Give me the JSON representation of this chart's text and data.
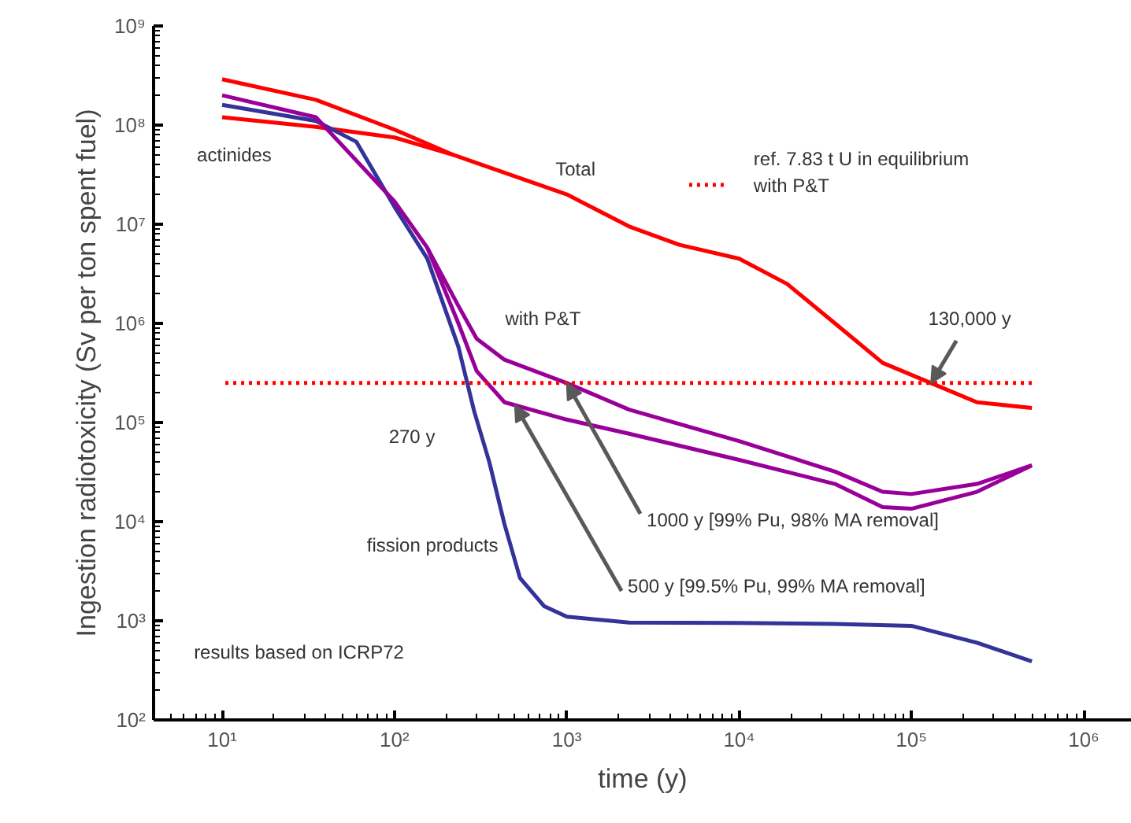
{
  "chart_data": {
    "type": "line",
    "xlabel": "time (y)",
    "ylabel": "Ingestion radiotoxicity (Sv per ton spent fuel)",
    "log": "xy",
    "grid": false,
    "line_style": "solid",
    "marker": "none",
    "legend": "top right",
    "xlim": [
      4,
      1900000
    ],
    "ylim": [
      100,
      1000000000
    ],
    "xticks": [
      {
        "value": 10,
        "label": "10¹"
      },
      {
        "value": 100,
        "label": "10²"
      },
      {
        "value": 1000,
        "label": "10³"
      },
      {
        "value": 10000,
        "label": "10⁴"
      },
      {
        "value": 100000,
        "label": "10⁵"
      },
      {
        "value": 1000000,
        "label": "10⁶"
      }
    ],
    "yticks": [
      {
        "value": 100,
        "label": "10²"
      },
      {
        "value": 1000,
        "label": "10³"
      },
      {
        "value": 10000,
        "label": "10⁴"
      },
      {
        "value": 100000,
        "label": "10⁵"
      },
      {
        "value": 1000000,
        "label": "10⁶"
      },
      {
        "value": 10000000,
        "label": "10⁷"
      },
      {
        "value": 100000000,
        "label": "10⁸"
      },
      {
        "value": 1000000000,
        "label": "10⁹"
      }
    ],
    "series": [
      {
        "name": "Total",
        "color": "#ff0000",
        "x": [
          10,
          35,
          100,
          220,
          1000,
          2300,
          4500,
          10000,
          19000,
          36000,
          68000,
          130000,
          240000,
          500000
        ],
        "values": [
          290000000,
          180000000,
          90000000,
          50000000,
          20000000,
          9500000,
          6200000,
          4500000,
          2500000,
          1000000,
          400000,
          250000,
          160000,
          140000
        ]
      },
      {
        "name": "actinides",
        "color": "#ff0000",
        "x": [
          10,
          35,
          100,
          220
        ],
        "values": [
          120000000,
          96000000,
          75000000,
          50000000
        ]
      },
      {
        "name": "fission products",
        "color": "#333399",
        "x": [
          10,
          35,
          60,
          100,
          155,
          235,
          290,
          355,
          435,
          535,
          740,
          1000,
          2300,
          10000,
          36000,
          100000,
          240000,
          500000
        ],
        "values": [
          160000000,
          110000000,
          68000000,
          15000000,
          4500000,
          580000,
          130000,
          40000,
          9400,
          2700,
          1400,
          1100,
          960,
          950,
          930,
          890,
          600,
          390
        ]
      },
      {
        "color": "#990099",
        "x": [
          10,
          35,
          100,
          155,
          235,
          300,
          435,
          1000,
          2300,
          10000,
          36000,
          68000,
          100000,
          240000,
          500000
        ],
        "values": [
          200000000,
          120000000,
          17000000,
          5800000,
          1500000,
          700000,
          430000,
          250000,
          135000,
          65000,
          32000,
          20000,
          19000,
          24000,
          37000
        ]
      },
      {
        "color": "#990099",
        "x": [
          155,
          235,
          300,
          435,
          1000,
          2300,
          10000,
          36000,
          68000,
          100000,
          240000,
          500000
        ],
        "values": [
          5800000,
          1000000,
          330000,
          160000,
          107000,
          77000,
          42000,
          24000,
          14000,
          13500,
          20000,
          37000
        ]
      }
    ],
    "ref_lines": [
      {
        "axis": "y",
        "value": 250000,
        "label": "ref. 7.83 t U in equilibrium with P&T",
        "color": "#ff0000",
        "line_style": "dotted"
      }
    ],
    "annotations": [
      "270 y",
      "results based on ICRP72",
      "with P&T",
      {
        "text": "130,000 y",
        "x": 130000,
        "y": 250000
      },
      {
        "text": "1000 y [99% Pu, 98% MA removal]",
        "x": 1000,
        "y": 250000
      },
      {
        "text": "500 y [99.5% Pu, 99% MA removal]",
        "x": 500,
        "y": 150000
      }
    ]
  }
}
